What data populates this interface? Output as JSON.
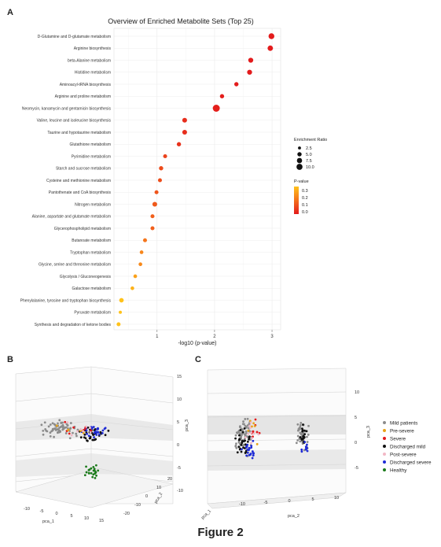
{
  "panels": {
    "a": "A",
    "b": "B",
    "c": "C"
  },
  "figure_caption": "Figure 2",
  "chart_data": [
    {
      "type": "scatter",
      "panel": "A",
      "title": "Overview of Enriched Metabolite Sets (Top 25)",
      "xlabel": "-log10 (p-value)",
      "ylabel": "",
      "xlim": [
        0.25,
        3.15
      ],
      "xticks": [
        1,
        2,
        3
      ],
      "grid": true,
      "categories": [
        "D-Glutamine and D-glutamate metabolism",
        "Arginine biosynthesis",
        "beta-Alanine metabolism",
        "Histidine metabolism",
        "Aminoacyl-tRNA biosynthesis",
        "Arginine and proline metabolism",
        "Neomycin, kanamycin and gentamicin biosynthesis",
        "Valine, leucine and isoleucine biosynthesis",
        "Taurine and hypotaurine metabolism",
        "Glutathione metabolism",
        "Pyrimidine metabolism",
        "Starch and sucrose metabolism",
        "Cysteine and methionine metabolism",
        "Pantothenate and CoA biosynthesis",
        "Nitrogen metabolism",
        "Alanine, aspartate and glutamate metabolism",
        "Glycerophospholipid metabolism",
        "Butanoate metabolism",
        "Tryptophan metabolism",
        "Glycine, serine and threonine metabolism",
        "Glycolysis / Gluconeogenesis",
        "Galactose metabolism",
        "Phenylalanine, tyrosine and tryptophan biosynthesis",
        "Pyruvate metabolism",
        "Synthesis and degradation of ketone bodies"
      ],
      "x": [
        2.99,
        2.97,
        2.63,
        2.61,
        2.38,
        2.13,
        2.03,
        1.48,
        1.48,
        1.38,
        1.14,
        1.07,
        1.05,
        0.99,
        0.96,
        0.92,
        0.92,
        0.79,
        0.73,
        0.71,
        0.62,
        0.57,
        0.38,
        0.36,
        0.33
      ],
      "enrichment_ratio": [
        7.5,
        6.5,
        5.5,
        5.5,
        4.0,
        4.0,
        11.0,
        5.0,
        5.0,
        4.0,
        3.5,
        4.0,
        3.5,
        3.5,
        5.0,
        3.5,
        3.5,
        3.5,
        3.0,
        3.0,
        3.0,
        3.0,
        4.5,
        2.2,
        3.5
      ],
      "pvalue": [
        0.001,
        0.001,
        0.002,
        0.002,
        0.004,
        0.007,
        0.009,
        0.033,
        0.033,
        0.042,
        0.072,
        0.085,
        0.089,
        0.102,
        0.11,
        0.12,
        0.12,
        0.16,
        0.19,
        0.195,
        0.24,
        0.27,
        0.42,
        0.44,
        0.47
      ],
      "legend_size": {
        "title": "Enrichment Ratio",
        "values": [
          2.5,
          5.0,
          7.5,
          10.0
        ],
        "labels": [
          "2.5",
          "5.0",
          "7.5",
          "10.0"
        ]
      },
      "legend_color": {
        "title": "P-value",
        "ticks": [
          "0.3",
          "0.2",
          "0.1",
          "0.0"
        ],
        "colors": [
          "#ffc21a",
          "#f4701b",
          "#e31a1c"
        ]
      }
    },
    {
      "type": "scatter",
      "panel": "B",
      "xlabel": "pca_1",
      "ylabel": "pca_2",
      "zlabel": "pca_3",
      "x_ticks": [
        "-10",
        "-5",
        "0",
        "5",
        "10",
        "15"
      ],
      "y_ticks": [
        "-20",
        "-10",
        "0",
        "10",
        "20"
      ],
      "z_ticks": [
        "15",
        "10",
        "5",
        "0",
        "-5",
        "-10"
      ]
    },
    {
      "type": "scatter",
      "panel": "C",
      "xlabel": "pca_2",
      "ylabel": "pca_1",
      "zlabel": "pca_3",
      "x_ticks": [
        "-10",
        "-5",
        "0",
        "5",
        "10"
      ],
      "z_ticks": [
        "10",
        "5",
        "0",
        "-5"
      ],
      "legend_position": "right",
      "series": [
        {
          "name": "Mild patients",
          "color": "#8c8c8c"
        },
        {
          "name": "Pre-severe",
          "color": "#e8a317"
        },
        {
          "name": "Severe",
          "color": "#e31a1c"
        },
        {
          "name": "Discharged mild",
          "color": "#111111"
        },
        {
          "name": "Post-severe",
          "color": "#f2b8c6"
        },
        {
          "name": "Discharged severe",
          "color": "#1f2bd6"
        },
        {
          "name": "Healthy",
          "color": "#1a7a1a"
        }
      ]
    }
  ]
}
